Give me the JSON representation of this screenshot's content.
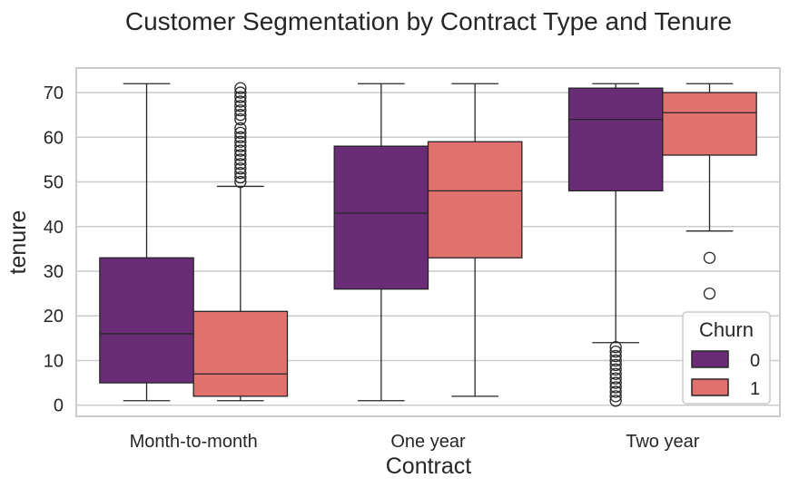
{
  "chart_data": {
    "type": "box",
    "title": "Customer Segmentation by Contract Type and Tenure",
    "xlabel": "Contract",
    "ylabel": "tenure",
    "categories": [
      "Month-to-month",
      "One year",
      "Two year"
    ],
    "ylim": [
      -2.5,
      75.5
    ],
    "yticks": [
      0,
      10,
      20,
      30,
      40,
      50,
      60,
      70
    ],
    "grid": true,
    "legend": {
      "title": "Churn",
      "position": "lower-right"
    },
    "series": [
      {
        "name": "0",
        "color": "#6a2c76",
        "boxes": [
          {
            "category": "Month-to-month",
            "whislo": 1,
            "q1": 5,
            "median": 16,
            "q3": 33,
            "whishi": 72,
            "fliers": []
          },
          {
            "category": "One year",
            "whislo": 1,
            "q1": 26,
            "median": 43,
            "q3": 58,
            "whishi": 72,
            "fliers": []
          },
          {
            "category": "Two year",
            "whislo": 14,
            "q1": 48,
            "median": 64,
            "q3": 71,
            "whishi": 72,
            "fliers": [
              1,
              2,
              3,
              4,
              5,
              6,
              7,
              8,
              9,
              10,
              11,
              12,
              13
            ]
          }
        ]
      },
      {
        "name": "1",
        "color": "#e0716c",
        "boxes": [
          {
            "category": "Month-to-month",
            "whislo": 1,
            "q1": 2,
            "median": 7,
            "q3": 21,
            "whishi": 49,
            "fliers": [
              50,
              51,
              52,
              53,
              54,
              55,
              56,
              57,
              58,
              59,
              60,
              61,
              62,
              64,
              65,
              66,
              67,
              68,
              69,
              70,
              71
            ]
          },
          {
            "category": "One year",
            "whislo": 2,
            "q1": 33,
            "median": 48,
            "q3": 59,
            "whishi": 72,
            "fliers": []
          },
          {
            "category": "Two year",
            "whislo": 39,
            "q1": 56,
            "median": 65.5,
            "q3": 70,
            "whishi": 72,
            "fliers": [
              25,
              33
            ]
          }
        ]
      }
    ]
  }
}
